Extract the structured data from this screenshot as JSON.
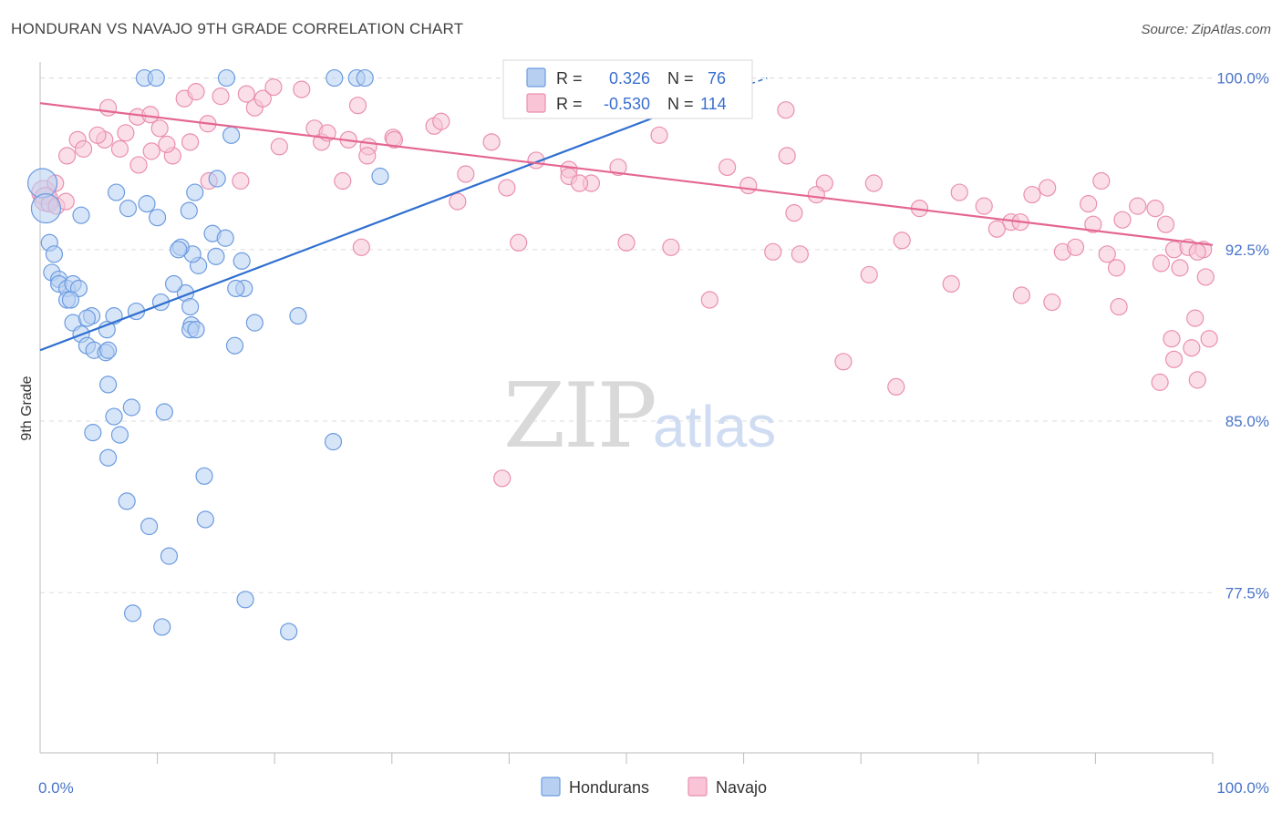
{
  "title": "HONDURAN VS NAVAJO 9TH GRADE CORRELATION CHART",
  "source": "Source: ZipAtlas.com",
  "watermark": {
    "zip": "ZIP",
    "atlas": "atlas"
  },
  "colors": {
    "hondurans_fill": "#b7d0f2",
    "hondurans_stroke": "#6c9be0",
    "hondurans_line": "#2f6fd0",
    "navajo_fill": "#f8c4d6",
    "navajo_stroke": "#ea8fb0",
    "navajo_line": "#e46691",
    "tick_text": "#4a74c9",
    "grid": "#dddddd"
  },
  "stats": [
    {
      "r_label": "R =",
      "r_value": "0.326",
      "n_label": "N =",
      "n_value": "76"
    },
    {
      "r_label": "R =",
      "r_value": "-0.530",
      "n_label": "N =",
      "n_value": "114"
    }
  ],
  "chart_data": {
    "type": "scatter",
    "xlabel": "",
    "ylabel": "9th Grade",
    "xlim": [
      0,
      100
    ],
    "ylim": [
      70.5,
      100.7
    ],
    "x_tick_labels": [
      "0.0%",
      "100.0%"
    ],
    "y_ticks": [
      77.5,
      85.0,
      92.5,
      100.0
    ],
    "y_tick_labels": [
      "77.5%",
      "85.0%",
      "92.5%",
      "100.0%"
    ],
    "grid": "horizontal dashed",
    "legend_position": "bottom-center",
    "legend": [
      "Hondurans",
      "Navajo"
    ],
    "series": [
      {
        "name": "Hondurans",
        "r": 0.326,
        "n": 76,
        "trend": {
          "x": [
            0,
            52
          ],
          "y": [
            88.1,
            98.2
          ]
        },
        "points": [
          [
            0.2,
            95.4
          ],
          [
            0.5,
            94.3
          ],
          [
            0.8,
            92.8
          ],
          [
            1.2,
            92.3
          ],
          [
            1.0,
            91.5
          ],
          [
            1.6,
            91.2
          ],
          [
            1.6,
            91.0
          ],
          [
            2.3,
            90.8
          ],
          [
            2.8,
            91.0
          ],
          [
            3.3,
            90.8
          ],
          [
            2.3,
            90.3
          ],
          [
            2.6,
            90.3
          ],
          [
            2.8,
            89.3
          ],
          [
            4.4,
            89.6
          ],
          [
            6.3,
            89.6
          ],
          [
            4.0,
            89.5
          ],
          [
            8.2,
            89.8
          ],
          [
            10.3,
            90.2
          ],
          [
            12.4,
            90.6
          ],
          [
            13.5,
            91.8
          ],
          [
            15.0,
            92.2
          ],
          [
            13.0,
            92.3
          ],
          [
            12.0,
            92.6
          ],
          [
            11.4,
            91.0
          ],
          [
            11.8,
            92.5
          ],
          [
            17.4,
            90.8
          ],
          [
            16.7,
            90.8
          ],
          [
            17.2,
            92.0
          ],
          [
            18.3,
            89.3
          ],
          [
            22.0,
            89.6
          ],
          [
            3.5,
            88.8
          ],
          [
            4.0,
            88.3
          ],
          [
            4.6,
            88.1
          ],
          [
            5.6,
            88.0
          ],
          [
            5.8,
            88.1
          ],
          [
            12.9,
            89.2
          ],
          [
            12.8,
            89.0
          ],
          [
            13.3,
            89.0
          ],
          [
            16.6,
            88.3
          ],
          [
            7.8,
            85.6
          ],
          [
            10.6,
            85.4
          ],
          [
            5.8,
            86.6
          ],
          [
            6.3,
            85.2
          ],
          [
            4.5,
            84.5
          ],
          [
            6.8,
            84.4
          ],
          [
            5.8,
            83.4
          ],
          [
            14.0,
            82.6
          ],
          [
            25.0,
            84.1
          ],
          [
            7.4,
            81.5
          ],
          [
            9.3,
            80.4
          ],
          [
            14.1,
            80.7
          ],
          [
            11.0,
            79.1
          ],
          [
            17.5,
            77.2
          ],
          [
            7.9,
            76.6
          ],
          [
            10.4,
            76.0
          ],
          [
            21.2,
            75.8
          ],
          [
            8.9,
            100.0
          ],
          [
            9.9,
            100.0
          ],
          [
            15.9,
            100.0
          ],
          [
            25.1,
            100.0
          ],
          [
            27.0,
            100.0
          ],
          [
            27.7,
            100.0
          ],
          [
            29.0,
            95.7
          ],
          [
            13.2,
            95.0
          ],
          [
            16.3,
            97.5
          ],
          [
            15.1,
            95.6
          ],
          [
            6.5,
            95.0
          ],
          [
            7.5,
            94.3
          ],
          [
            9.1,
            94.5
          ],
          [
            10.0,
            93.9
          ],
          [
            12.7,
            94.2
          ],
          [
            3.5,
            94.0
          ],
          [
            12.8,
            90.0
          ],
          [
            5.7,
            89.0
          ],
          [
            14.7,
            93.2
          ],
          [
            15.8,
            93.0
          ]
        ]
      },
      {
        "name": "Navajo",
        "r": -0.53,
        "n": 114,
        "trend": {
          "x": [
            0,
            100
          ],
          "y": [
            98.9,
            92.7
          ]
        },
        "points": [
          [
            0.3,
            95.0
          ],
          [
            0.5,
            94.7
          ],
          [
            0.8,
            94.5
          ],
          [
            1.4,
            94.4
          ],
          [
            2.3,
            96.6
          ],
          [
            3.2,
            97.3
          ],
          [
            3.7,
            96.9
          ],
          [
            5.5,
            97.3
          ],
          [
            5.8,
            98.7
          ],
          [
            7.3,
            97.6
          ],
          [
            8.3,
            98.3
          ],
          [
            9.4,
            98.4
          ],
          [
            10.2,
            97.8
          ],
          [
            11.3,
            96.6
          ],
          [
            12.3,
            99.1
          ],
          [
            13.3,
            99.4
          ],
          [
            14.3,
            98.0
          ],
          [
            15.4,
            99.2
          ],
          [
            17.6,
            99.3
          ],
          [
            18.3,
            98.7
          ],
          [
            19.0,
            99.1
          ],
          [
            19.9,
            99.6
          ],
          [
            20.4,
            97.0
          ],
          [
            22.3,
            99.5
          ],
          [
            23.4,
            97.8
          ],
          [
            24.0,
            97.2
          ],
          [
            24.5,
            97.6
          ],
          [
            26.3,
            97.3
          ],
          [
            27.1,
            98.8
          ],
          [
            28.0,
            97.0
          ],
          [
            30.1,
            97.4
          ],
          [
            33.6,
            97.9
          ],
          [
            34.2,
            98.1
          ],
          [
            36.3,
            95.8
          ],
          [
            38.5,
            97.2
          ],
          [
            39.8,
            95.2
          ],
          [
            42.3,
            96.4
          ],
          [
            45.1,
            96.0
          ],
          [
            47.0,
            95.4
          ],
          [
            49.3,
            96.1
          ],
          [
            52.8,
            97.5
          ],
          [
            58.6,
            96.1
          ],
          [
            63.7,
            96.6
          ],
          [
            66.9,
            95.4
          ],
          [
            71.1,
            95.4
          ],
          [
            75.0,
            94.3
          ],
          [
            78.4,
            95.0
          ],
          [
            80.5,
            94.4
          ],
          [
            82.8,
            93.7
          ],
          [
            84.6,
            94.9
          ],
          [
            89.4,
            94.5
          ],
          [
            90.5,
            95.5
          ],
          [
            93.6,
            94.4
          ],
          [
            95.1,
            94.3
          ],
          [
            81.6,
            93.4
          ],
          [
            83.6,
            93.7
          ],
          [
            87.2,
            92.4
          ],
          [
            91.0,
            92.3
          ],
          [
            92.3,
            93.8
          ],
          [
            96.0,
            93.6
          ],
          [
            96.7,
            92.5
          ],
          [
            97.9,
            92.6
          ],
          [
            99.2,
            92.5
          ],
          [
            62.5,
            92.4
          ],
          [
            70.7,
            91.4
          ],
          [
            77.7,
            91.0
          ],
          [
            83.7,
            90.5
          ],
          [
            86.3,
            90.2
          ],
          [
            88.3,
            92.6
          ],
          [
            91.8,
            91.7
          ],
          [
            95.6,
            91.9
          ],
          [
            97.2,
            91.7
          ],
          [
            99.4,
            91.3
          ],
          [
            98.5,
            89.5
          ],
          [
            96.5,
            88.6
          ],
          [
            99.7,
            88.6
          ],
          [
            95.5,
            86.7
          ],
          [
            98.7,
            86.8
          ],
          [
            98.2,
            88.2
          ],
          [
            96.7,
            87.7
          ],
          [
            57.1,
            90.3
          ],
          [
            68.5,
            87.6
          ],
          [
            73.0,
            86.5
          ],
          [
            92.0,
            90.0
          ],
          [
            40.8,
            92.8
          ],
          [
            53.8,
            92.6
          ],
          [
            73.5,
            92.9
          ],
          [
            39.4,
            82.5
          ],
          [
            1.3,
            95.4
          ],
          [
            2.2,
            94.6
          ],
          [
            4.9,
            97.5
          ],
          [
            6.8,
            96.9
          ],
          [
            8.4,
            96.2
          ],
          [
            9.5,
            96.8
          ],
          [
            10.8,
            97.1
          ],
          [
            12.8,
            97.2
          ],
          [
            14.4,
            95.5
          ],
          [
            17.1,
            95.5
          ],
          [
            25.8,
            95.5
          ],
          [
            27.4,
            92.6
          ],
          [
            27.9,
            96.6
          ],
          [
            30.2,
            97.3
          ],
          [
            35.6,
            94.6
          ],
          [
            45.1,
            95.7
          ],
          [
            46.0,
            95.4
          ],
          [
            50.0,
            92.8
          ],
          [
            60.4,
            95.3
          ],
          [
            63.6,
            98.6
          ],
          [
            64.3,
            94.1
          ],
          [
            64.8,
            92.3
          ],
          [
            66.2,
            94.9
          ],
          [
            85.9,
            95.2
          ],
          [
            89.8,
            93.6
          ],
          [
            98.7,
            92.4
          ]
        ]
      }
    ]
  }
}
